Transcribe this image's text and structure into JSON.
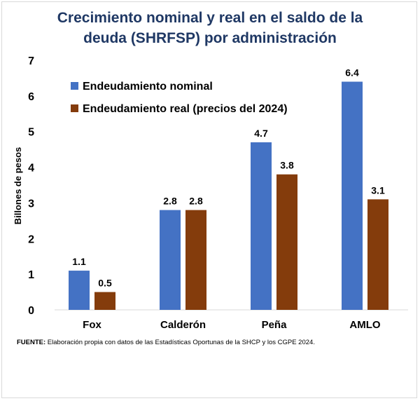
{
  "chart_data": {
    "type": "bar",
    "title_line1": "Crecimiento nominal y real en el saldo de la",
    "title_line2": "deuda (SHRFSP) por administración",
    "ylabel": "Billones de pesos",
    "xlabel": "",
    "ylim": [
      0,
      7
    ],
    "yticks": [
      0,
      1,
      2,
      3,
      4,
      5,
      6,
      7
    ],
    "categories": [
      "Fox",
      "Calderón",
      "Peña",
      "AMLO"
    ],
    "series": [
      {
        "name": "Endeudamiento nominal",
        "color": "#4472c4",
        "values": [
          1.1,
          2.8,
          4.7,
          6.4
        ]
      },
      {
        "name": "Endeudamiento real (precios del 2024)",
        "color": "#843c0c",
        "values": [
          0.5,
          2.8,
          3.8,
          3.1
        ]
      }
    ],
    "legend_position": "top-left",
    "grid": false
  },
  "source": {
    "label": "FUENTE:",
    "text": " Elaboración propia con datos de las Estadísticas Oportunas de la SHCP y los CGPE 2024."
  }
}
